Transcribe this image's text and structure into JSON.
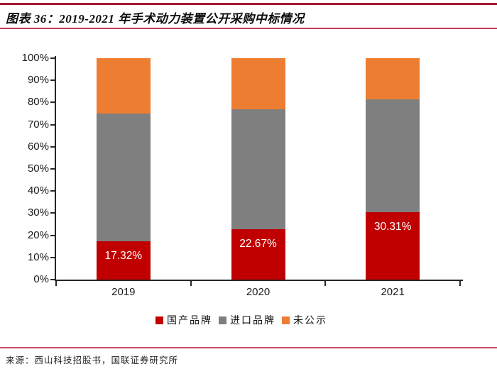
{
  "header": {
    "title": "图表 36：2019-2021 年手术动力装置公开采购中标情况"
  },
  "footer": {
    "source": "来源：西山科技招股书，国联证券研究所"
  },
  "colors": {
    "domestic_red": "#C00000",
    "import_gray": "#7F7F7F",
    "undisclosed_orange": "#ED7D31",
    "rule_red_dark": "#A8182F",
    "rule_red_light": "#C23A56",
    "axis_black": "#262626"
  },
  "chart_data": {
    "type": "bar",
    "stacked": true,
    "percent_stacked": true,
    "title": "",
    "xlabel": "",
    "ylabel": "",
    "categories": [
      "2019",
      "2020",
      "2021"
    ],
    "series": [
      {
        "name": "国产品牌",
        "color": "#C00000",
        "values": [
          17.32,
          22.67,
          30.31
        ],
        "labels": [
          "17.32%",
          "22.67%",
          "30.31%"
        ]
      },
      {
        "name": "进口品牌",
        "color": "#7F7F7F",
        "values": [
          57.68,
          54.33,
          51.02
        ],
        "labels": null
      },
      {
        "name": "未公示",
        "color": "#ED7D31",
        "values": [
          25.0,
          23.0,
          18.67
        ],
        "labels": null
      }
    ],
    "ylim": [
      0,
      100
    ],
    "yticks": [
      "0%",
      "10%",
      "20%",
      "30%",
      "40%",
      "50%",
      "60%",
      "70%",
      "80%",
      "90%",
      "100%"
    ],
    "grid": false,
    "legend_position": "bottom"
  }
}
